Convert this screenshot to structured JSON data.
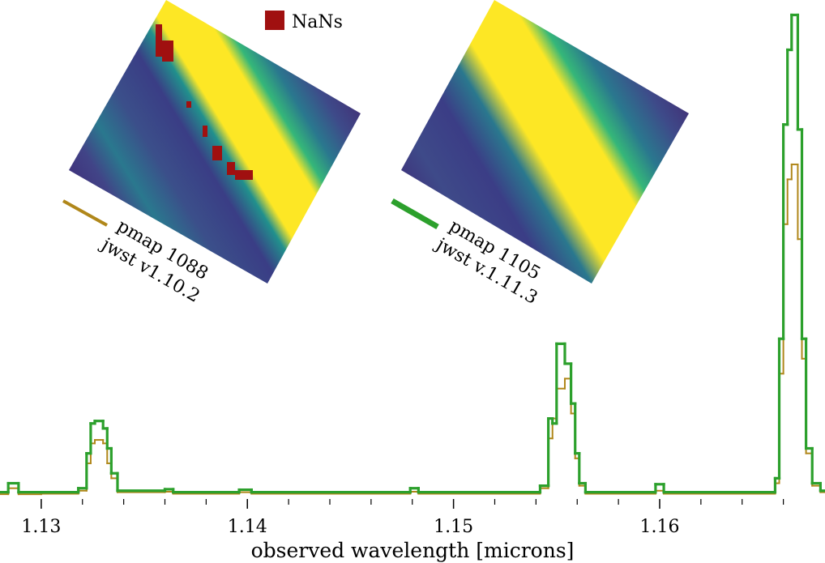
{
  "chart_data": {
    "type": "step",
    "xlabel": "observed wavelength [microns]",
    "xlim": [
      1.128,
      1.16802
    ],
    "ylim": [
      0,
      1
    ],
    "xticks": [
      1.13,
      1.14,
      1.15,
      1.16
    ],
    "xminorticks": [
      1.132,
      1.134,
      1.136,
      1.138,
      1.142,
      1.144,
      1.146,
      1.148,
      1.152,
      1.154,
      1.156,
      1.158,
      1.162,
      1.164,
      1.166
    ],
    "nan_label": "NaNs",
    "nan_color": "#a01010",
    "x": [
      1.128,
      1.1284,
      1.1289,
      1.13,
      1.1318,
      1.1322,
      1.1324,
      1.1326,
      1.133,
      1.1332,
      1.1334,
      1.1337,
      1.136,
      1.1364,
      1.1396,
      1.1402,
      1.1479,
      1.1483,
      1.1542,
      1.1546,
      1.1548,
      1.155,
      1.1554,
      1.1557,
      1.1559,
      1.1561,
      1.1564,
      1.1598,
      1.1602,
      1.1656,
      1.1658,
      1.166,
      1.1662,
      1.1664,
      1.1667,
      1.1669,
      1.1671,
      1.1674,
      1.1678
    ],
    "series": [
      {
        "name": "pmap 1088",
        "version": "jwst v1.10.2",
        "color": "#b0871a",
        "width": 2,
        "values": [
          0.008,
          0.02,
          0.008,
          0.009,
          0.015,
          0.07,
          0.11,
          0.117,
          0.11,
          0.07,
          0.04,
          0.012,
          0.013,
          0.009,
          0.012,
          0.009,
          0.013,
          0.009,
          0.02,
          0.12,
          0.16,
          0.22,
          0.24,
          0.17,
          0.08,
          0.025,
          0.009,
          0.015,
          0.009,
          0.03,
          0.25,
          0.55,
          0.64,
          0.67,
          0.52,
          0.28,
          0.09,
          0.025,
          0.012
        ]
      },
      {
        "name": "pmap 1105",
        "version": "jwst v.1.11.3",
        "color": "#2ca02c",
        "width": 3.2,
        "values": [
          0.012,
          0.03,
          0.012,
          0.012,
          0.02,
          0.09,
          0.15,
          0.155,
          0.14,
          0.1,
          0.05,
          0.015,
          0.018,
          0.012,
          0.017,
          0.012,
          0.02,
          0.012,
          0.025,
          0.16,
          0.15,
          0.31,
          0.27,
          0.19,
          0.09,
          0.03,
          0.012,
          0.028,
          0.012,
          0.04,
          0.32,
          0.75,
          0.9,
          0.97,
          0.74,
          0.32,
          0.1,
          0.03,
          0.015
        ]
      }
    ]
  }
}
